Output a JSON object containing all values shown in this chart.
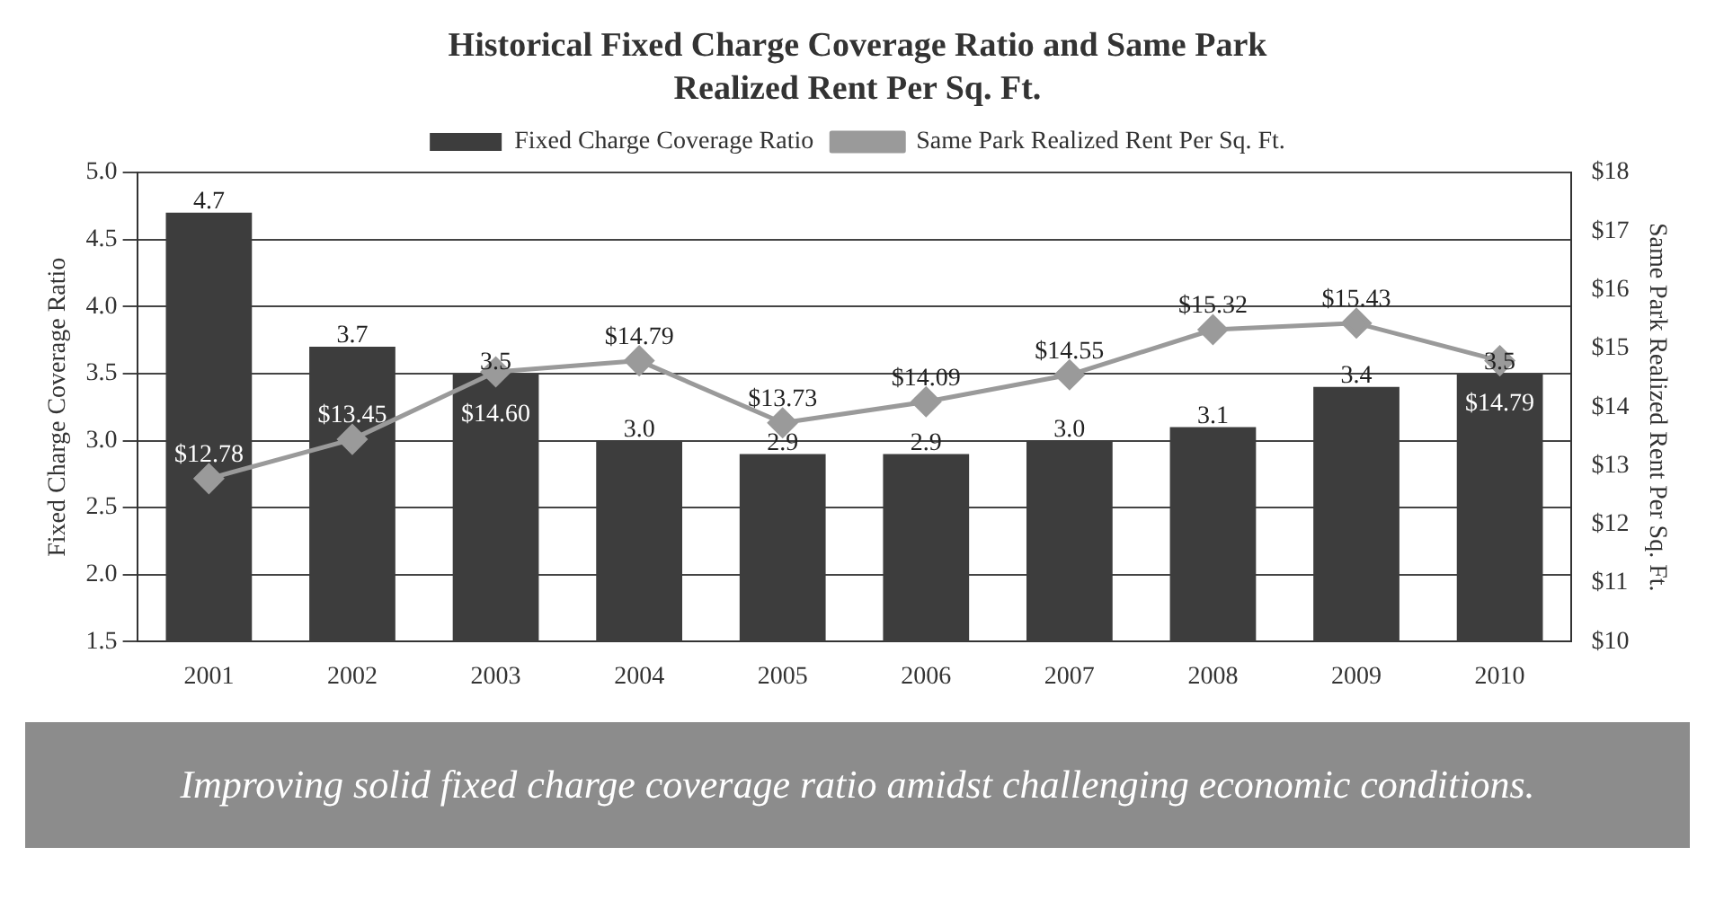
{
  "chart_data": {
    "type": "bar",
    "title": "Historical Fixed Charge Coverage Ratio and Same Park\nRealized Rent Per Sq. Ft.",
    "ylabel": "Fixed Charge Coverage Ratio",
    "y2label": "Same Park Realized Rent Per Sq. Ft.",
    "categories": [
      "2001",
      "2002",
      "2003",
      "2004",
      "2005",
      "2006",
      "2007",
      "2008",
      "2009",
      "2010"
    ],
    "series": [
      {
        "name": "Fixed Charge Coverage Ratio",
        "type": "bar",
        "color": "#3d3d3d",
        "values": [
          4.7,
          3.7,
          3.5,
          3.0,
          2.9,
          2.9,
          3.0,
          3.1,
          3.4,
          3.5
        ],
        "value_labels": [
          "4.7",
          "3.7",
          "3.5",
          "3.0",
          "2.9",
          "2.9",
          "3.0",
          "3.1",
          "3.4",
          "3.5"
        ]
      },
      {
        "name": "Same Park Realized Rent Per Sq. Ft.",
        "type": "line",
        "axis": "y2",
        "color": "#9a9a9a",
        "marker": "diamond",
        "values": [
          12.78,
          13.45,
          14.6,
          14.79,
          13.73,
          14.09,
          14.55,
          15.32,
          15.43,
          14.79
        ],
        "value_labels": [
          "$12.78",
          "$13.45",
          "$14.60",
          "$14.79",
          "$13.73",
          "$14.09",
          "$14.55",
          "$15.32",
          "$15.43",
          "$14.79"
        ]
      }
    ],
    "ylim": [
      1.5,
      5.0
    ],
    "yticks": [
      {
        "value": 1.5,
        "label": "1.5"
      },
      {
        "value": 2,
        "label": "2.0"
      },
      {
        "value": 2.5,
        "label": "2.5"
      },
      {
        "value": 3,
        "label": "3.0"
      },
      {
        "value": 3.5,
        "label": "3.5"
      },
      {
        "value": 4,
        "label": "4.0"
      },
      {
        "value": 4.5,
        "label": "4.5"
      },
      {
        "value": 5,
        "label": "5.0"
      }
    ],
    "y2lim": [
      10,
      18
    ],
    "y2ticks": [
      {
        "value": 10,
        "label": "$10"
      },
      {
        "value": 11,
        "label": "$11"
      },
      {
        "value": 12,
        "label": "$12"
      },
      {
        "value": 13,
        "label": "$13"
      },
      {
        "value": 14,
        "label": "$14"
      },
      {
        "value": 15,
        "label": "$15"
      },
      {
        "value": 16,
        "label": "$16"
      },
      {
        "value": 17,
        "label": "$17"
      },
      {
        "value": 18,
        "label": "$18"
      }
    ],
    "grid": "y",
    "legend": "top",
    "annotations": [
      "Improving solid fixed charge coverage ratio amidst challenging economic conditions."
    ]
  }
}
